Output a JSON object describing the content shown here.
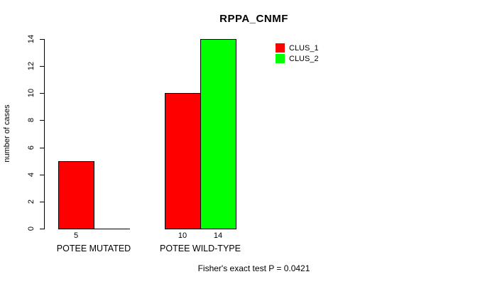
{
  "chart_data": {
    "type": "bar",
    "title": "RPPA_CNMF",
    "ylabel": "number of cases",
    "xlabel": "",
    "ylim": [
      0,
      14
    ],
    "yticks": [
      0,
      2,
      4,
      6,
      8,
      10,
      12,
      14
    ],
    "categories": [
      "POTEE MUTATED",
      "POTEE WILD-TYPE"
    ],
    "series": [
      {
        "name": "CLUS_1",
        "color": "#FF0000",
        "values": [
          5,
          10
        ]
      },
      {
        "name": "CLUS_2",
        "color": "#00FF00",
        "values": [
          0,
          14
        ]
      }
    ],
    "bar_value_labels": [
      [
        "5",
        null
      ],
      [
        "10",
        "14"
      ]
    ],
    "grid": false,
    "legend_position": "top-right",
    "legend_entries": [
      "CLUS_1",
      "CLUS_2"
    ],
    "footer": "Fisher's exact test P = 0.0421",
    "background_color": "#FFFFFF",
    "text_color": "#000000",
    "axis_color": "#000000"
  }
}
